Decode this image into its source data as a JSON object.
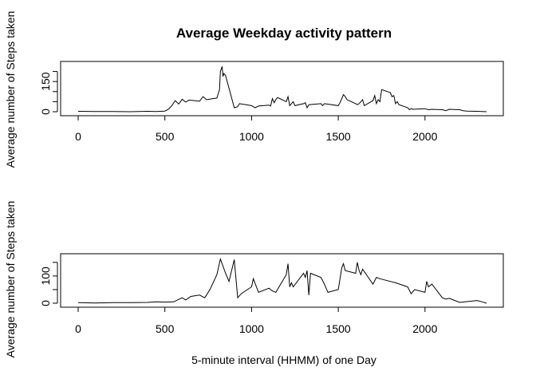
{
  "chart_data": [
    {
      "type": "line",
      "title": "Average Weekday activity pattern",
      "xlabel": "",
      "ylabel": "Average number of Steps taken",
      "xlim": [
        0,
        2355
      ],
      "ylim": [
        0,
        230
      ],
      "x_ticks": [
        0,
        500,
        1000,
        1500,
        2000
      ],
      "x_tick_labels": [
        "0",
        "500",
        "1000",
        "1500",
        "2000"
      ],
      "y_ticks": [
        0,
        50,
        100,
        150,
        200
      ],
      "y_tick_labels": [
        "0",
        "",
        "",
        "150",
        ""
      ],
      "grid": false,
      "series": [
        {
          "x": [
            0,
            100,
            200,
            300,
            400,
            450,
            500,
            520,
            540,
            560,
            580,
            600,
            620,
            640,
            700,
            720,
            740,
            800,
            815,
            820,
            830,
            835,
            840,
            850,
            900,
            920,
            930,
            1000,
            1020,
            1040,
            1100,
            1110,
            1120,
            1130,
            1140,
            1150,
            1200,
            1210,
            1220,
            1230,
            1240,
            1250,
            1300,
            1310,
            1320,
            1330,
            1400,
            1410,
            1420,
            1500,
            1510,
            1520,
            1530,
            1540,
            1550,
            1600,
            1610,
            1620,
            1630,
            1640,
            1650,
            1700,
            1710,
            1720,
            1730,
            1740,
            1750,
            1800,
            1810,
            1820,
            1830,
            1840,
            1850,
            1900,
            1910,
            1920,
            1930,
            2000,
            2020,
            2040,
            2100,
            2120,
            2140,
            2200,
            2220,
            2240,
            2300,
            2355
          ],
          "y": [
            2,
            1,
            1,
            0,
            2,
            1,
            3,
            12,
            30,
            55,
            38,
            62,
            48,
            58,
            52,
            75,
            60,
            68,
            110,
            200,
            225,
            175,
            190,
            180,
            20,
            25,
            40,
            30,
            20,
            28,
            33,
            28,
            65,
            45,
            60,
            70,
            50,
            75,
            30,
            40,
            50,
            30,
            40,
            45,
            20,
            35,
            40,
            30,
            40,
            30,
            45,
            65,
            85,
            75,
            60,
            40,
            35,
            40,
            50,
            60,
            30,
            55,
            80,
            40,
            60,
            50,
            110,
            95,
            75,
            80,
            40,
            50,
            35,
            20,
            10,
            15,
            12,
            15,
            10,
            12,
            10,
            5,
            12,
            10,
            5,
            3,
            2,
            0
          ]
        }
      ]
    },
    {
      "type": "line",
      "title": "",
      "xlabel": "5-minute interval (HHMM) of one Day",
      "ylabel": "Average number of Steps taken",
      "xlim": [
        0,
        2355
      ],
      "ylim": [
        0,
        170
      ],
      "x_ticks": [
        0,
        500,
        1000,
        1500,
        2000
      ],
      "x_tick_labels": [
        "0",
        "500",
        "1000",
        "1500",
        "2000"
      ],
      "y_ticks": [
        0,
        50,
        100,
        150
      ],
      "y_tick_labels": [
        "0",
        "",
        "100",
        ""
      ],
      "grid": false,
      "series": [
        {
          "x": [
            0,
            100,
            200,
            300,
            400,
            450,
            500,
            550,
            600,
            620,
            650,
            700,
            730,
            760,
            800,
            820,
            850,
            870,
            900,
            920,
            940,
            1000,
            1010,
            1040,
            1100,
            1120,
            1140,
            1200,
            1210,
            1220,
            1230,
            1240,
            1300,
            1310,
            1320,
            1330,
            1340,
            1400,
            1420,
            1440,
            1500,
            1510,
            1520,
            1530,
            1540,
            1600,
            1610,
            1620,
            1630,
            1640,
            1700,
            1720,
            1740,
            1800,
            1830,
            1900,
            1920,
            1940,
            2000,
            2010,
            2020,
            2040,
            2100,
            2120,
            2140,
            2200,
            2300,
            2330,
            2355
          ],
          "y": [
            2,
            1,
            2,
            2,
            3,
            5,
            4,
            5,
            20,
            12,
            25,
            30,
            20,
            50,
            105,
            162,
            110,
            80,
            160,
            20,
            35,
            60,
            90,
            40,
            55,
            45,
            40,
            105,
            145,
            60,
            75,
            60,
            110,
            95,
            120,
            30,
            110,
            95,
            70,
            40,
            50,
            90,
            130,
            145,
            120,
            110,
            150,
            120,
            105,
            125,
            70,
            95,
            90,
            80,
            75,
            60,
            35,
            50,
            40,
            80,
            60,
            70,
            20,
            15,
            18,
            3,
            10,
            5,
            0
          ]
        }
      ]
    }
  ]
}
